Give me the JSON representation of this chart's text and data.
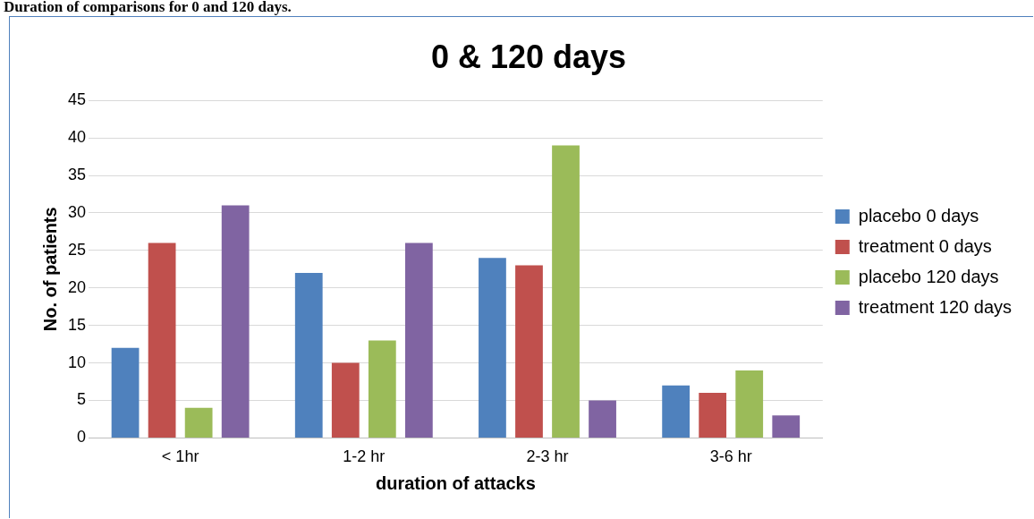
{
  "chart_data": {
    "type": "bar",
    "title": "0 & 120 days",
    "xlabel": "duration of attacks",
    "ylabel": "No. of patients",
    "annotations": [
      "Duration of comparisons for 0 and 120 days."
    ],
    "categories": [
      "< 1hr",
      "1-2 hr",
      "2-3 hr",
      "3-6 hr"
    ],
    "series": [
      {
        "name": "placebo 0 days",
        "color": "#4f81bd",
        "values": [
          12,
          22,
          24,
          7
        ]
      },
      {
        "name": "treatment 0 days",
        "color": "#c0504d",
        "values": [
          26,
          10,
          23,
          6
        ]
      },
      {
        "name": "placebo 120 days",
        "color": "#9bbb59",
        "values": [
          4,
          13,
          39,
          9
        ]
      },
      {
        "name": "treatment 120 days",
        "color": "#8064a2",
        "values": [
          31,
          26,
          5,
          3
        ]
      }
    ],
    "ylim": [
      0,
      45
    ],
    "yticks": [
      0,
      5,
      10,
      15,
      20,
      25,
      30,
      35,
      40,
      45
    ],
    "grid": "y",
    "legend": "right"
  }
}
